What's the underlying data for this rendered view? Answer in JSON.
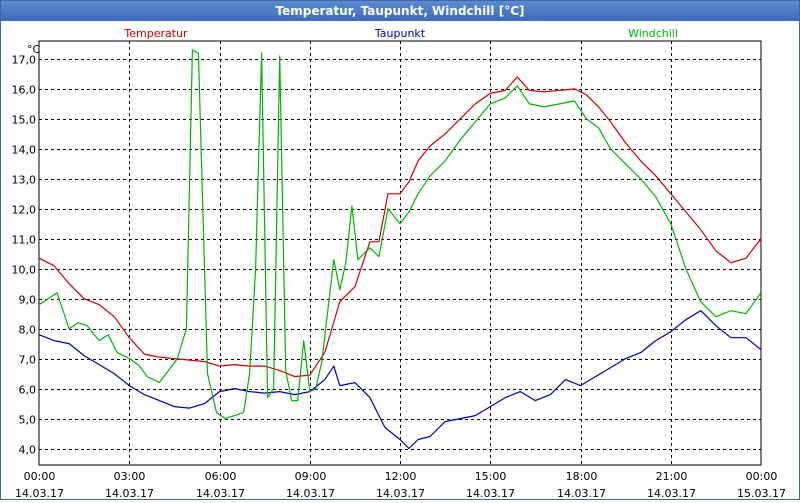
{
  "window": {
    "title": "Temperatur, Taupunkt, Windchill [°C]"
  },
  "colors": {
    "temperatur": "#cc0000",
    "taupunkt": "#0000b4",
    "windchill": "#00b400",
    "grid": "#000000"
  },
  "chart_data": {
    "type": "line",
    "title": "Temperatur, Taupunkt, Windchill [°C]",
    "ylabel": "°C",
    "xlabel": "",
    "ylim": [
      3.45,
      17.6
    ],
    "xlim": [
      0,
      24
    ],
    "grid": true,
    "y_ticks": [
      4,
      5,
      6,
      7,
      8,
      9,
      10,
      11,
      12,
      13,
      14,
      15,
      16,
      17
    ],
    "y_tick_labels": [
      "4,0",
      "5,0",
      "6,0",
      "7,0",
      "8,0",
      "9,0",
      "10,0",
      "11,0",
      "12,0",
      "13,0",
      "14,0",
      "15,0",
      "16,0",
      "17,0"
    ],
    "x_ticks": [
      0,
      3,
      6,
      9,
      12,
      15,
      18,
      21,
      24
    ],
    "x_tick_times": [
      "00:00",
      "03:00",
      "06:00",
      "09:00",
      "12:00",
      "15:00",
      "18:00",
      "21:00",
      "00:00"
    ],
    "x_tick_dates": [
      "14.03.17",
      "14.03.17",
      "14.03.17",
      "14.03.17",
      "14.03.17",
      "14.03.17",
      "14.03.17",
      "14.03.17",
      "15.03.17"
    ],
    "series": [
      {
        "name": "Temperatur",
        "color": "#cc0000",
        "x": [
          0,
          0.5,
          1.0,
          1.5,
          2.0,
          2.5,
          3.0,
          3.5,
          4.0,
          4.5,
          5.0,
          5.5,
          6.0,
          6.5,
          7.0,
          7.5,
          8.0,
          8.5,
          9.0,
          9.5,
          10.0,
          10.5,
          11.0,
          11.3,
          11.6,
          12.0,
          12.3,
          12.6,
          13.0,
          13.5,
          14.0,
          14.5,
          15.0,
          15.5,
          15.9,
          16.3,
          16.8,
          17.3,
          17.8,
          18.2,
          18.6,
          19.0,
          19.5,
          20.0,
          20.5,
          21.0,
          21.5,
          22.0,
          22.5,
          23.0,
          23.5,
          24.0
        ],
        "values": [
          10.35,
          10.1,
          9.5,
          9.0,
          8.8,
          8.4,
          7.7,
          7.15,
          7.05,
          7.0,
          6.95,
          6.9,
          6.75,
          6.8,
          6.75,
          6.75,
          6.6,
          6.4,
          6.45,
          7.2,
          8.9,
          9.4,
          10.9,
          10.9,
          12.5,
          12.5,
          12.9,
          13.6,
          14.1,
          14.5,
          15.0,
          15.5,
          15.85,
          15.95,
          16.4,
          15.95,
          15.9,
          15.95,
          16.0,
          15.8,
          15.4,
          14.9,
          14.2,
          13.6,
          13.1,
          12.5,
          11.9,
          11.3,
          10.6,
          10.2,
          10.35,
          11.0
        ]
      },
      {
        "name": "Taupunkt",
        "color": "#0000b4",
        "x": [
          0,
          0.5,
          1.0,
          1.5,
          2.0,
          2.5,
          3.0,
          3.5,
          4.0,
          4.5,
          5.0,
          5.5,
          6.0,
          6.5,
          7.0,
          7.5,
          8.0,
          8.5,
          9.0,
          9.5,
          9.8,
          10.0,
          10.5,
          11.0,
          11.5,
          12.0,
          12.3,
          12.6,
          13.0,
          13.5,
          14.0,
          14.5,
          15.0,
          15.5,
          16.0,
          16.5,
          17.0,
          17.5,
          18.0,
          18.5,
          19.0,
          19.5,
          20.0,
          20.5,
          21.0,
          21.5,
          22.0,
          22.5,
          23.0,
          23.5,
          24.0
        ],
        "values": [
          7.8,
          7.6,
          7.5,
          7.1,
          6.8,
          6.5,
          6.1,
          5.8,
          5.6,
          5.4,
          5.35,
          5.5,
          5.9,
          6.0,
          5.9,
          5.85,
          5.9,
          5.8,
          5.9,
          6.3,
          6.75,
          6.1,
          6.2,
          5.7,
          4.7,
          4.3,
          4.0,
          4.3,
          4.4,
          4.9,
          5.0,
          5.1,
          5.4,
          5.7,
          5.9,
          5.6,
          5.8,
          6.3,
          6.1,
          6.4,
          6.7,
          7.0,
          7.2,
          7.6,
          7.9,
          8.3,
          8.6,
          8.1,
          7.7,
          7.7,
          7.3
        ]
      },
      {
        "name": "Windchill",
        "color": "#00b400",
        "x": [
          0,
          0.3,
          0.6,
          1.0,
          1.3,
          1.6,
          2.0,
          2.3,
          2.6,
          3.0,
          3.3,
          3.6,
          4.0,
          4.3,
          4.6,
          4.9,
          5.1,
          5.3,
          5.6,
          5.9,
          6.2,
          6.5,
          6.8,
          7.0,
          7.2,
          7.4,
          7.6,
          7.8,
          8.0,
          8.2,
          8.4,
          8.6,
          8.8,
          9.0,
          9.2,
          9.4,
          9.6,
          9.8,
          10.0,
          10.2,
          10.4,
          10.6,
          11.0,
          11.3,
          11.6,
          12.0,
          12.3,
          12.6,
          13.0,
          13.5,
          14.0,
          14.5,
          15.0,
          15.5,
          15.9,
          16.3,
          16.8,
          17.3,
          17.8,
          18.2,
          18.6,
          19.0,
          19.5,
          20.0,
          20.5,
          21.0,
          21.5,
          22.0,
          22.5,
          23.0,
          23.5,
          24.0
        ],
        "values": [
          8.8,
          9.0,
          9.2,
          8.0,
          8.2,
          8.1,
          7.6,
          7.8,
          7.2,
          7.0,
          6.8,
          6.4,
          6.2,
          6.6,
          7.0,
          8.0,
          17.3,
          17.2,
          6.5,
          5.2,
          5.0,
          5.1,
          5.2,
          6.5,
          10.0,
          17.2,
          5.7,
          6.0,
          17.1,
          6.6,
          5.6,
          5.6,
          7.6,
          5.9,
          6.0,
          6.9,
          8.6,
          10.3,
          9.3,
          10.2,
          12.1,
          10.3,
          10.7,
          10.4,
          12.0,
          11.5,
          11.9,
          12.5,
          13.1,
          13.6,
          14.3,
          14.9,
          15.5,
          15.7,
          16.1,
          15.5,
          15.4,
          15.5,
          15.6,
          15.0,
          14.7,
          14.0,
          13.5,
          13.0,
          12.4,
          11.5,
          10.0,
          8.9,
          8.4,
          8.6,
          8.5,
          9.2
        ]
      }
    ]
  }
}
